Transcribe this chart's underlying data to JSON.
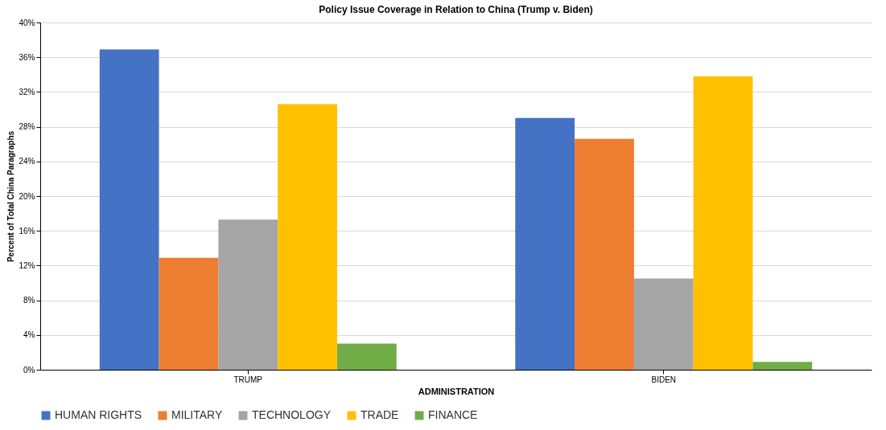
{
  "chart_data": {
    "type": "bar",
    "title": "Policy Issue Coverage in Relation to China (Trump v. Biden)",
    "xlabel": "ADMINISTRATION",
    "ylabel": "Percent of Total China Paragraphs",
    "categories": [
      "TRUMP",
      "BIDEN"
    ],
    "series": [
      {
        "name": "HUMAN RIGHTS",
        "color": "#4472c4",
        "values": [
          36.9,
          29.0
        ]
      },
      {
        "name": "MILITARY",
        "color": "#ed7d31",
        "values": [
          12.9,
          26.6
        ]
      },
      {
        "name": "TECHNOLOGY",
        "color": "#a5a5a5",
        "values": [
          17.3,
          10.5
        ]
      },
      {
        "name": "TRADE",
        "color": "#ffc000",
        "values": [
          30.6,
          33.8
        ]
      },
      {
        "name": "FINANCE",
        "color": "#70ad47",
        "values": [
          3.0,
          0.9
        ]
      }
    ],
    "ylim": [
      0,
      40
    ],
    "yticks": [
      {
        "value": 0,
        "label": "0%"
      },
      {
        "value": 4,
        "label": "4%"
      },
      {
        "value": 8,
        "label": "8%"
      },
      {
        "value": 12,
        "label": "12%"
      },
      {
        "value": 16,
        "label": "16%"
      },
      {
        "value": 20,
        "label": "20%"
      },
      {
        "value": 24,
        "label": "24%"
      },
      {
        "value": 28,
        "label": "28%"
      },
      {
        "value": 32,
        "label": "32%"
      },
      {
        "value": 36,
        "label": "36%"
      },
      {
        "value": 40,
        "label": "40%"
      }
    ],
    "grid": "y",
    "legend": "bottom"
  }
}
